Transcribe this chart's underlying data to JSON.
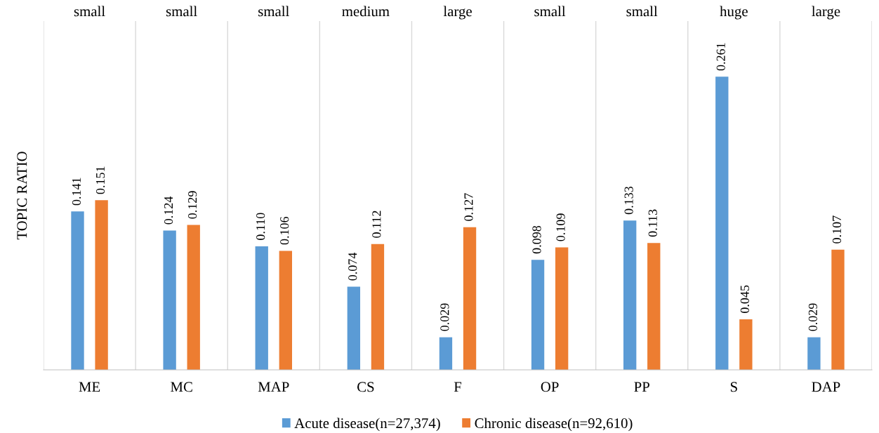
{
  "chart_data": {
    "type": "bar",
    "ylabel": "TOPIC RATIO",
    "categories": [
      "ME",
      "MC",
      "MAP",
      "CS",
      "F",
      "OP",
      "PP",
      "S",
      "DAP"
    ],
    "series": [
      {
        "name": "Acute disease(n=27,374)",
        "color": "#5b9bd5",
        "values": [
          0.141,
          0.124,
          0.11,
          0.074,
          0.029,
          0.098,
          0.133,
          0.261,
          0.029
        ],
        "value_labels": [
          "0.141",
          "0.124",
          "0.110",
          "0.074",
          "0.029",
          "0.098",
          "0.133",
          "0.261",
          "0.029"
        ]
      },
      {
        "name": "Chronic disease(n=92,610)",
        "color": "#ed7d31",
        "values": [
          0.151,
          0.129,
          0.106,
          0.112,
          0.127,
          0.109,
          0.113,
          0.045,
          0.107
        ],
        "value_labels": [
          "0.151",
          "0.129",
          "0.106",
          "0.112",
          "0.127",
          "0.109",
          "0.113",
          "0.045",
          "0.107"
        ]
      }
    ],
    "grid": "x",
    "legend": "bottom",
    "annotations": [
      "small",
      "small",
      "small",
      "medium",
      "large",
      "small",
      "small",
      "huge",
      "large"
    ]
  }
}
